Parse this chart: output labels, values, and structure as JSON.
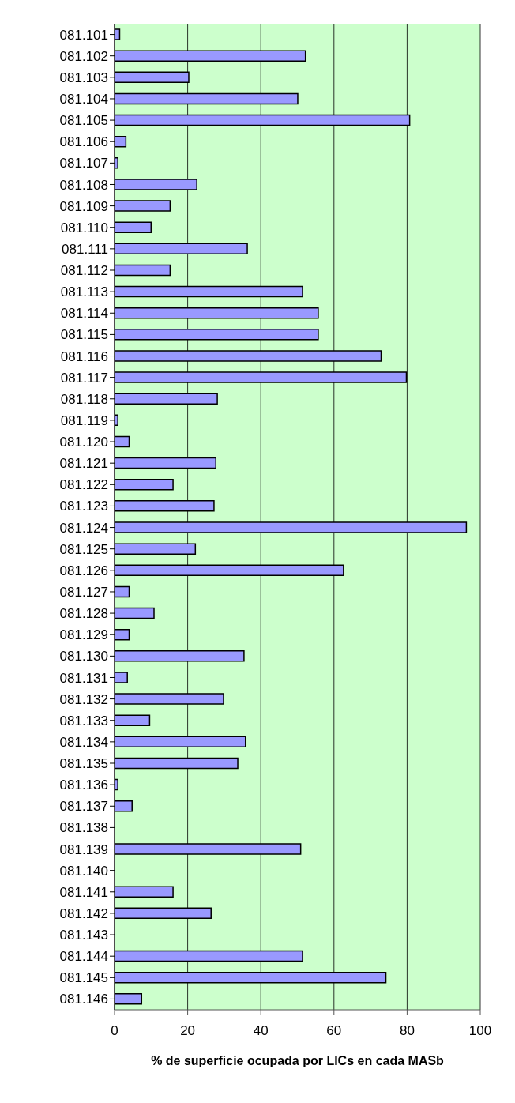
{
  "chart_data": {
    "type": "bar",
    "orientation": "horizontal",
    "xlabel": "% de superficie ocupada por LICs en cada MASb",
    "categories": [
      "081.101",
      "081.102",
      "081.103",
      "081.104",
      "081.105",
      "081.106",
      "081.107",
      "081.108",
      "081.109",
      "081.110",
      "081.111",
      "081.112",
      "081.113",
      "081.114",
      "081.115",
      "081.116",
      "081.117",
      "081.118",
      "081.119",
      "081.120",
      "081.121",
      "081.122",
      "081.123",
      "081.124",
      "081.125",
      "081.126",
      "081.127",
      "081.128",
      "081.129",
      "081.130",
      "081.131",
      "081.132",
      "081.133",
      "081.134",
      "081.135",
      "081.136",
      "081.137",
      "081.138",
      "081.139",
      "081.140",
      "081.141",
      "081.142",
      "081.143",
      "081.144",
      "081.145",
      "081.146"
    ],
    "values": [
      1.4,
      52.2,
      20.3,
      50.1,
      80.7,
      3.1,
      0.9,
      22.5,
      15.2,
      10.0,
      36.3,
      15.2,
      51.4,
      55.7,
      55.7,
      72.9,
      79.8,
      28.1,
      0.9,
      4.0,
      27.7,
      16.0,
      27.2,
      96.2,
      22.1,
      62.6,
      4.0,
      10.8,
      4.0,
      35.4,
      3.5,
      29.8,
      9.6,
      35.8,
      33.7,
      0.9,
      4.8,
      null,
      50.9,
      null,
      16.0,
      26.4,
      null,
      51.4,
      74.2,
      7.4
    ],
    "color": "#9999ff",
    "xlim": [
      0,
      100
    ],
    "xticks": [
      0,
      20,
      40,
      60,
      80,
      100
    ],
    "grid": "x"
  }
}
